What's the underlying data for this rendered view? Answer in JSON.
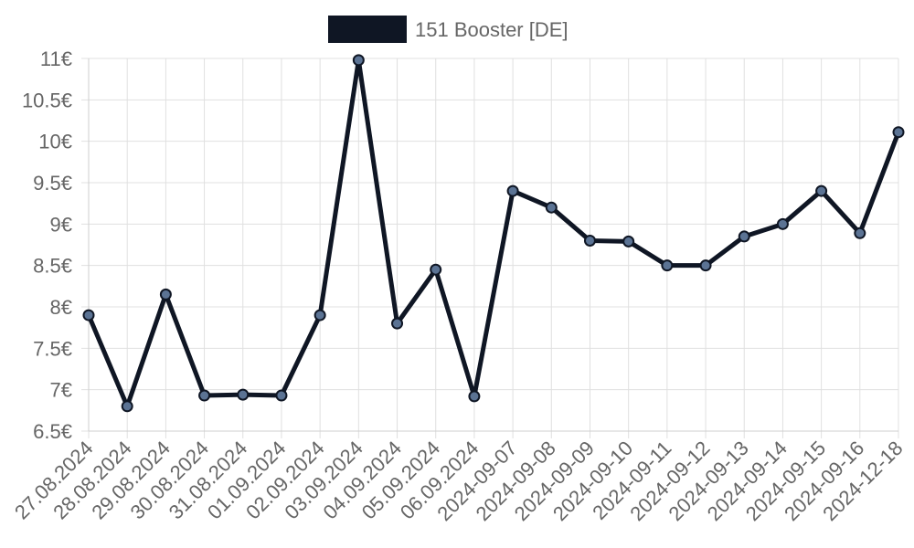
{
  "chart_data": {
    "type": "line",
    "categories": [
      "27.08.2024",
      "28.08.2024",
      "29.08.2024",
      "30.08.2024",
      "31.08.2024",
      "01.09.2024",
      "02.09.2024",
      "03.09.2024",
      "04.09.2024",
      "05.09.2024",
      "06.09.2024",
      "2024-09-07",
      "2024-09-08",
      "2024-09-09",
      "2024-09-10",
      "2024-09-11",
      "2024-09-12",
      "2024-09-13",
      "2024-09-14",
      "2024-09-15",
      "2024-09-16",
      "2024-12-18"
    ],
    "series": [
      {
        "name": "151 Booster [DE]",
        "values": [
          7.9,
          6.8,
          8.15,
          6.93,
          6.94,
          6.93,
          7.9,
          10.98,
          7.8,
          8.45,
          6.92,
          9.4,
          9.2,
          8.8,
          8.79,
          8.5,
          8.5,
          8.85,
          9.0,
          9.4,
          8.89,
          10.11
        ],
        "color": "#0f1624",
        "point_fill": "#5b7394"
      }
    ],
    "ylim": [
      6.5,
      11
    ],
    "yticks": [
      {
        "value": 11,
        "label": "11€"
      },
      {
        "value": 10.5,
        "label": "10.5€"
      },
      {
        "value": 10,
        "label": "10€"
      },
      {
        "value": 9.5,
        "label": "9.5€"
      },
      {
        "value": 9,
        "label": "9€"
      },
      {
        "value": 8.5,
        "label": "8.5€"
      },
      {
        "value": 8,
        "label": "8€"
      },
      {
        "value": 7.5,
        "label": "7.5€"
      },
      {
        "value": 7,
        "label": "7€"
      },
      {
        "value": 6.5,
        "label": "6.5€"
      }
    ],
    "grid": true,
    "legend_position": "top-center"
  }
}
